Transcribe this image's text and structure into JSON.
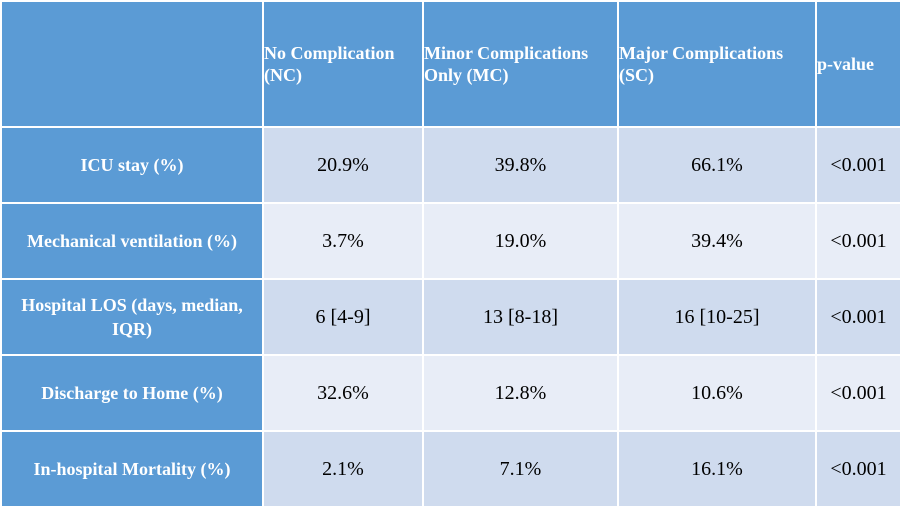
{
  "header": {
    "corner": "",
    "columns": [
      "No Complication (NC)",
      "Minor Complications Only (MC)",
      "Major Complications (SC)",
      "p-value"
    ]
  },
  "rows": [
    {
      "label": "ICU stay (%)",
      "values": [
        "20.9%",
        "39.8%",
        "66.1%",
        "<0.001"
      ]
    },
    {
      "label": "Mechanical ventilation (%)",
      "values": [
        "3.7%",
        "19.0%",
        "39.4%",
        "<0.001"
      ]
    },
    {
      "label": "Hospital LOS (days, median, IQR)",
      "values": [
        "6 [4-9]",
        "13 [8-18]",
        "16 [10-25]",
        "<0.001"
      ]
    },
    {
      "label": "Discharge to Home (%)",
      "values": [
        "32.6%",
        "12.8%",
        "10.6%",
        "<0.001"
      ]
    },
    {
      "label": "In-hospital Mortality (%)",
      "values": [
        "2.1%",
        "7.1%",
        "16.1%",
        "<0.001"
      ]
    }
  ],
  "colors": {
    "header_blue": "#5b9bd5",
    "row_dark": "#cfdbee",
    "row_light": "#e8edf7"
  }
}
